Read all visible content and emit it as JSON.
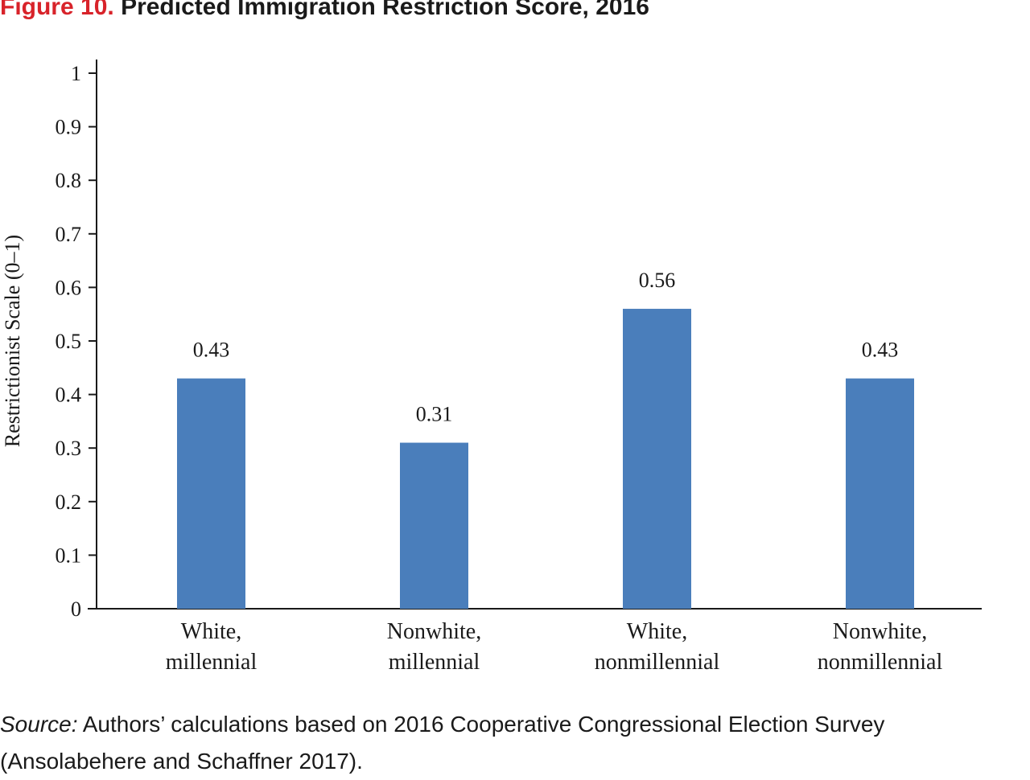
{
  "figure": {
    "label": "Figure 10.",
    "title": "Predicted Immigration Restriction Score, 2016"
  },
  "source": {
    "label": "Source:",
    "text": "Authors’ calculations based on 2016 Cooperative Congressional Election Survey (Ansolabehere and Schaffner 2017)."
  },
  "chart_data": {
    "type": "bar",
    "title": "Predicted Immigration Restriction Score, 2016",
    "xlabel": "",
    "ylabel": "Restrictionist Scale (0–1)",
    "ylim": [
      0,
      1
    ],
    "yticks": [
      "0",
      "0.1",
      "0.2",
      "0.3",
      "0.4",
      "0.5",
      "0.6",
      "0.7",
      "0.8",
      "0.9",
      "1"
    ],
    "categories": [
      [
        "White,",
        "millennial"
      ],
      [
        "Nonwhite,",
        "millennial"
      ],
      [
        "White,",
        "nonmillennial"
      ],
      [
        "Nonwhite,",
        "nonmillennial"
      ]
    ],
    "values": [
      0.43,
      0.31,
      0.56,
      0.43
    ],
    "value_labels": [
      "0.43",
      "0.31",
      "0.56",
      "0.43"
    ],
    "bar_color": "#4a7ebb",
    "grid": false,
    "legend": "none"
  }
}
